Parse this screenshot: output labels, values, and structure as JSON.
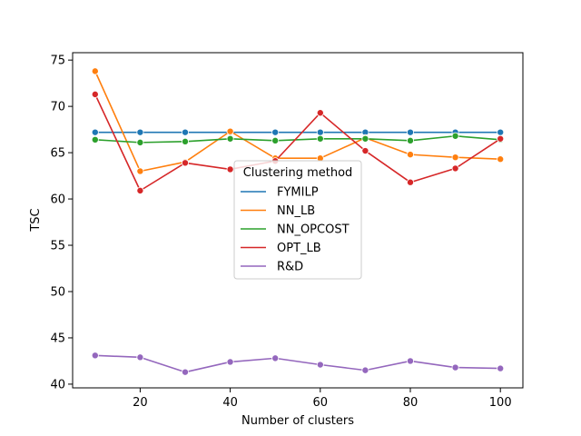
{
  "chart_data": {
    "type": "line",
    "title": "",
    "xlabel": "Number of clusters",
    "ylabel": "TSC",
    "xlim": [
      5,
      105
    ],
    "ylim": [
      39.6,
      75.8
    ],
    "xticks": [
      20,
      40,
      60,
      80,
      100
    ],
    "yticks": [
      40,
      45,
      50,
      55,
      60,
      65,
      70,
      75
    ],
    "grid": false,
    "legend": {
      "title": "Clustering method",
      "placement": "center"
    },
    "x": [
      10,
      20,
      30,
      40,
      50,
      60,
      70,
      80,
      90,
      100
    ],
    "series": [
      {
        "name": "FYMILP",
        "color": "#1f77b4",
        "values": [
          67.2,
          67.2,
          67.2,
          67.2,
          67.2,
          67.2,
          67.2,
          67.2,
          67.2,
          67.2
        ]
      },
      {
        "name": "NN_LB",
        "color": "#ff7f0e",
        "values": [
          73.8,
          63.0,
          64.0,
          67.3,
          64.4,
          64.4,
          66.6,
          64.8,
          64.5,
          64.3
        ]
      },
      {
        "name": "NN_OPCOST",
        "color": "#2ca02c",
        "values": [
          66.4,
          66.1,
          66.2,
          66.5,
          66.3,
          66.5,
          66.5,
          66.3,
          66.8,
          66.4
        ]
      },
      {
        "name": "OPT_LB",
        "color": "#d62728",
        "values": [
          71.3,
          60.9,
          63.9,
          63.2,
          64.1,
          69.3,
          65.2,
          61.8,
          63.3,
          66.5
        ]
      },
      {
        "name": "R&D",
        "color": "#9467bd",
        "values": [
          43.1,
          42.9,
          41.3,
          42.4,
          42.8,
          42.1,
          41.5,
          42.5,
          41.8,
          41.7
        ]
      }
    ]
  }
}
